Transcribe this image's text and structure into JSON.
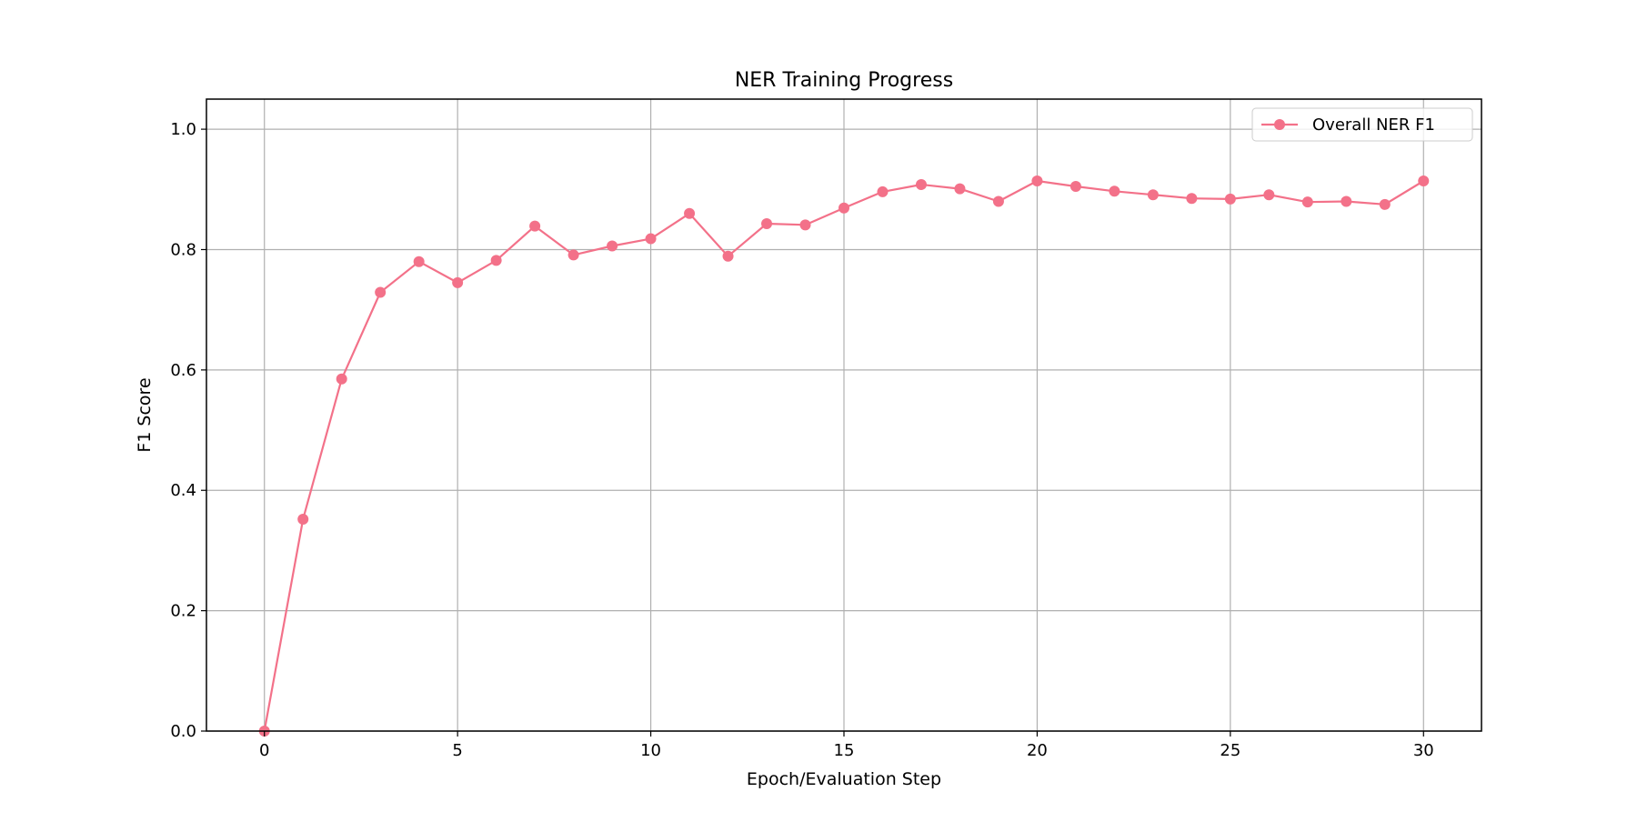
{
  "chart_data": {
    "type": "line",
    "title": "NER Training Progress",
    "xlabel": "Epoch/Evaluation Step",
    "ylabel": "F1 Score",
    "xlim": [
      -1.5,
      31.5
    ],
    "ylim": [
      0.0,
      1.05
    ],
    "x_ticks": [
      0,
      5,
      10,
      15,
      20,
      25,
      30
    ],
    "y_ticks": [
      0.0,
      0.2,
      0.4,
      0.6,
      0.8,
      1.0
    ],
    "x_tick_labels": [
      "0",
      "5",
      "10",
      "15",
      "20",
      "25",
      "30"
    ],
    "y_tick_labels": [
      "0.0",
      "0.2",
      "0.4",
      "0.6",
      "0.8",
      "1.0"
    ],
    "grid": true,
    "legend_position": "top-right",
    "series": [
      {
        "name": "Overall NER F1",
        "color": "#f37189",
        "marker": "circle",
        "x": [
          0,
          1,
          2,
          3,
          4,
          5,
          6,
          7,
          8,
          9,
          10,
          11,
          12,
          13,
          14,
          15,
          16,
          17,
          18,
          19,
          20,
          21,
          22,
          23,
          24,
          25,
          26,
          27,
          28,
          29,
          30
        ],
        "values": [
          0.0,
          0.352,
          0.585,
          0.729,
          0.78,
          0.745,
          0.782,
          0.839,
          0.791,
          0.806,
          0.818,
          0.86,
          0.789,
          0.843,
          0.841,
          0.869,
          0.896,
          0.908,
          0.901,
          0.88,
          0.914,
          0.905,
          0.897,
          0.891,
          0.885,
          0.884,
          0.891,
          0.879,
          0.88,
          0.875,
          0.914
        ]
      }
    ]
  }
}
